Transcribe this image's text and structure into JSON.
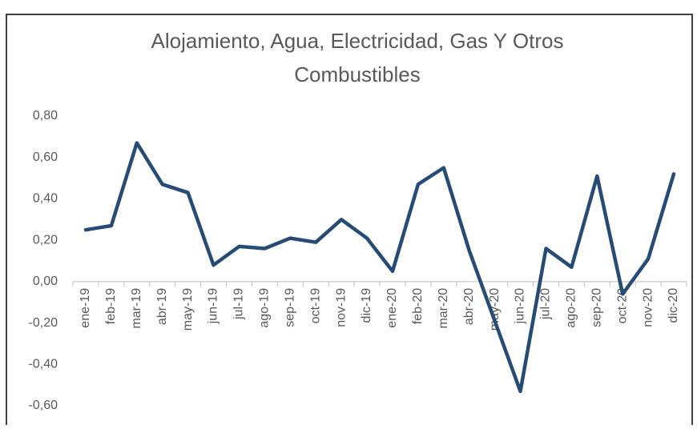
{
  "chart_data": {
    "type": "line",
    "title_lines": [
      "Alojamiento, Agua, Electricidad, Gas Y Otros",
      "Combustibles"
    ],
    "categories": [
      "ene-19",
      "feb-19",
      "mar-19",
      "abr-19",
      "may-19",
      "jun-19",
      "jul-19",
      "ago-19",
      "sep-19",
      "oct-19",
      "nov-19",
      "dic-19",
      "ene-20",
      "feb-20",
      "mar-20",
      "abr-20",
      "may-20",
      "jun-20",
      "jul-20",
      "ago-20",
      "sep-20",
      "oct-20",
      "nov-20",
      "dic-20"
    ],
    "series": [
      {
        "name": "Alojamiento, Agua, Electricidad, Gas Y Otros Combustibles",
        "color": "#264b75",
        "values": [
          0.25,
          0.27,
          0.67,
          0.47,
          0.43,
          0.08,
          0.17,
          0.16,
          0.21,
          0.19,
          0.3,
          0.21,
          0.05,
          0.47,
          0.55,
          0.15,
          -0.19,
          -0.53,
          0.16,
          0.07,
          0.51,
          -0.06,
          0.11,
          0.52
        ]
      }
    ],
    "ylim": [
      -0.6,
      0.8
    ],
    "yticks": [
      {
        "value": -0.6,
        "label": "-0,60"
      },
      {
        "value": -0.4,
        "label": "-0,40"
      },
      {
        "value": -0.2,
        "label": "-0,20"
      },
      {
        "value": 0,
        "label": "0,00"
      },
      {
        "value": 0.2,
        "label": "0,20"
      },
      {
        "value": 0.4,
        "label": "0,40"
      },
      {
        "value": 0.6,
        "label": "0,60"
      },
      {
        "value": 0.8,
        "label": "0,80"
      }
    ],
    "grid": false
  }
}
